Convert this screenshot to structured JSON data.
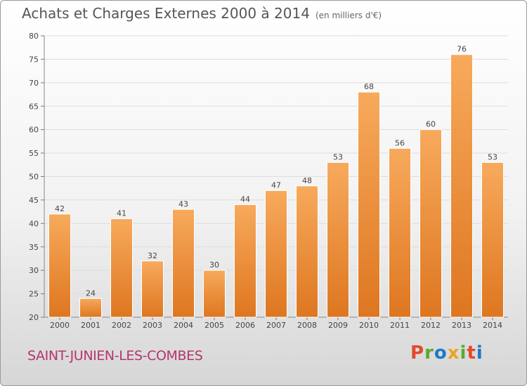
{
  "title": "Achats et Charges Externes 2000 à 2014",
  "subtitle": "(en milliers d'€)",
  "commune": "SAINT-JUNIEN-LES-COMBES",
  "logo": {
    "text": "Proxiti",
    "colors": [
      "#e24a2a",
      "#5aaa2e",
      "#1f78c8",
      "#e8a520",
      "#5aaa2e",
      "#e24a2a",
      "#1f78c8"
    ]
  },
  "colors": {
    "bar_light": "#f7a95a",
    "bar_dark": "#e07a22",
    "grid": "#dddddd",
    "commune": "#b5356d"
  },
  "chart_data": {
    "type": "bar",
    "categories": [
      "2000",
      "2001",
      "2002",
      "2003",
      "2004",
      "2005",
      "2006",
      "2007",
      "2008",
      "2009",
      "2010",
      "2011",
      "2012",
      "2013",
      "2014"
    ],
    "values": [
      42,
      24,
      41,
      32,
      43,
      30,
      44,
      47,
      48,
      53,
      68,
      56,
      60,
      76,
      53
    ],
    "ylim": [
      20,
      80
    ],
    "yticks": [
      20,
      25,
      30,
      35,
      40,
      45,
      50,
      55,
      60,
      65,
      70,
      75,
      80
    ],
    "grid": true,
    "data_labels": true
  }
}
